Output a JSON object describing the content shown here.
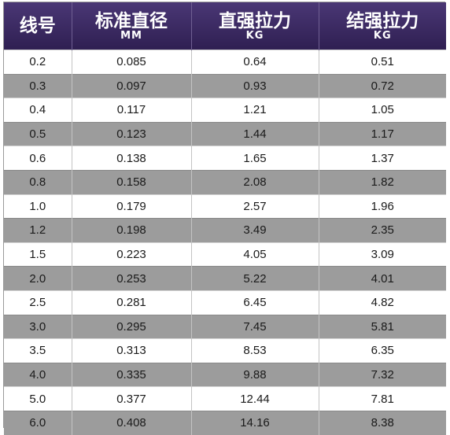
{
  "table": {
    "headers": [
      {
        "label": "线号",
        "unit": ""
      },
      {
        "label": "标准直径",
        "unit": "MM"
      },
      {
        "label": "直强拉力",
        "unit": "KG"
      },
      {
        "label": "结强拉力",
        "unit": "KG"
      }
    ],
    "rows": [
      [
        "0.2",
        "0.085",
        "0.64",
        "0.51"
      ],
      [
        "0.3",
        "0.097",
        "0.93",
        "0.72"
      ],
      [
        "0.4",
        "0.117",
        "1.21",
        "1.05"
      ],
      [
        "0.5",
        "0.123",
        "1.44",
        "1.17"
      ],
      [
        "0.6",
        "0.138",
        "1.65",
        "1.37"
      ],
      [
        "0.8",
        "0.158",
        "2.08",
        "1.82"
      ],
      [
        "1.0",
        "0.179",
        "2.57",
        "1.96"
      ],
      [
        "1.2",
        "0.198",
        "3.49",
        "2.35"
      ],
      [
        "1.5",
        "0.223",
        "4.05",
        "3.09"
      ],
      [
        "2.0",
        "0.253",
        "5.22",
        "4.01"
      ],
      [
        "2.5",
        "0.281",
        "6.45",
        "4.82"
      ],
      [
        "3.0",
        "0.295",
        "7.45",
        "5.81"
      ],
      [
        "3.5",
        "0.313",
        "8.53",
        "6.35"
      ],
      [
        "4.0",
        "0.335",
        "9.88",
        "7.32"
      ],
      [
        "5.0",
        "0.377",
        "12.44",
        "7.81"
      ],
      [
        "6.0",
        "0.408",
        "14.16",
        "8.38"
      ]
    ]
  },
  "colors": {
    "header_bg": "#3a2a60",
    "header_text": "#ffffff",
    "row_alt_bg": "#9c9c9c",
    "row_bg": "#ffffff"
  }
}
